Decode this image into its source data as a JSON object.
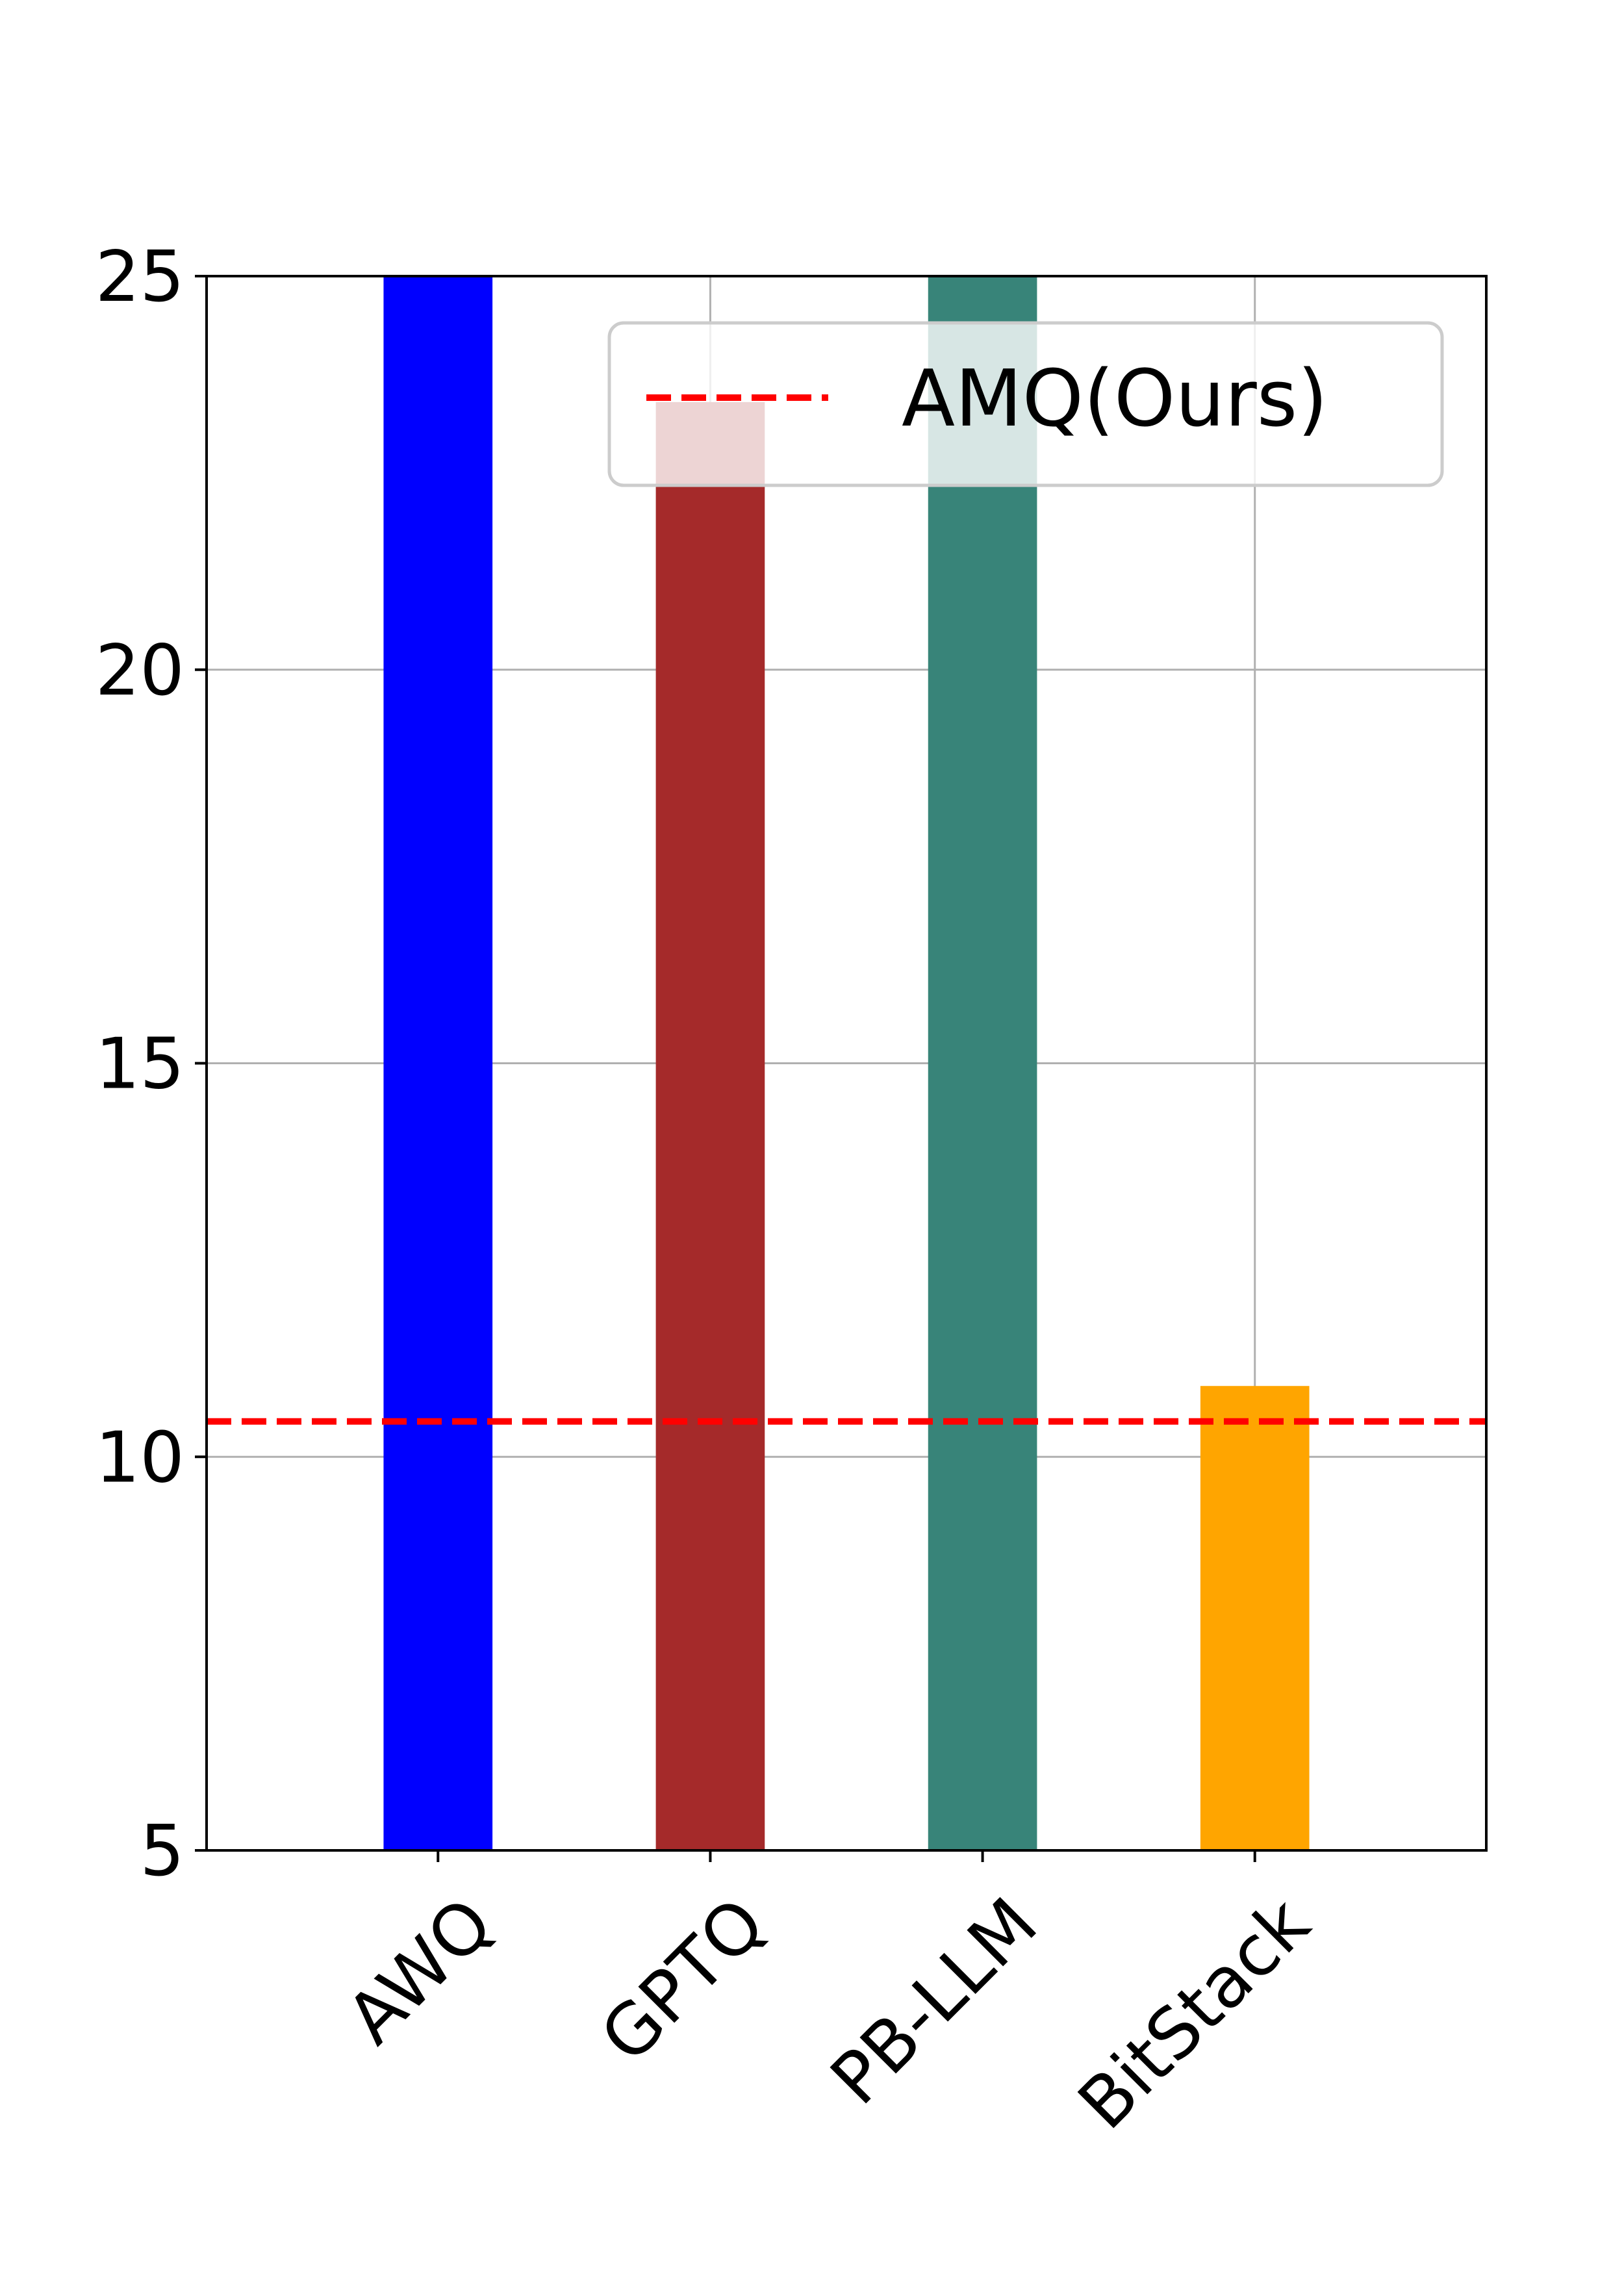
{
  "chart_data": {
    "type": "bar",
    "title": "",
    "xlabel": "",
    "ylabel": "",
    "categories": [
      "AWQ",
      "GPTQ",
      "PB-LLM",
      "BitStack"
    ],
    "values": [
      25,
      23.4,
      25,
      10.9
    ],
    "bar_colors": [
      "#0000ff",
      "#a52a2a",
      "#388479",
      "#ffa500"
    ],
    "ylim": [
      5,
      25
    ],
    "yticks": [
      5,
      10,
      15,
      20,
      25
    ],
    "grid": true,
    "reference_line": {
      "label": "AMQ(Ours)",
      "value": 10.45,
      "color": "#ff0000",
      "style": "dashed"
    },
    "legend": {
      "position": "upper-right",
      "entries": [
        "AMQ(Ours)"
      ]
    }
  }
}
